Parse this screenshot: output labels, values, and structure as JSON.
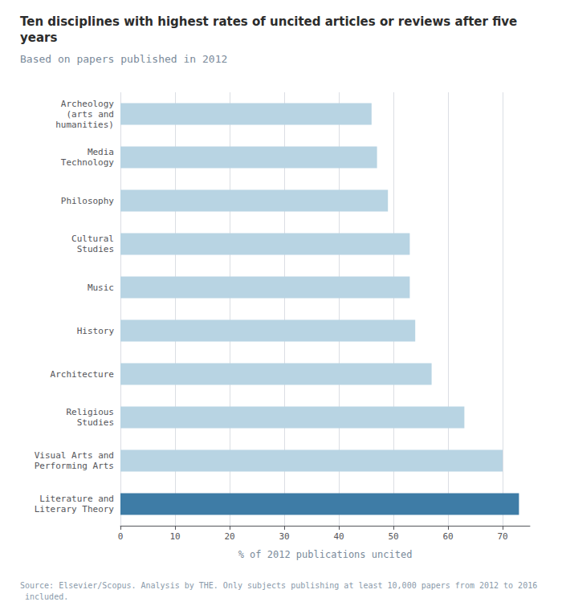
{
  "chart_data": {
    "type": "bar",
    "orientation": "horizontal",
    "title": "Ten disciplines with highest rates of uncited articles or reviews after five years",
    "subtitle": "Based on papers published in 2012",
    "footnote": "Source: Elsevier/Scopus. Analysis by THE. Only subjects publishing at least 10,000 papers from 2012 to 2016 included.",
    "categories": [
      "Archeology\n(arts and\nhumanities)",
      "Media\nTechnology",
      "Philosophy",
      "Cultural\nStudies",
      "Music",
      "History",
      "Architecture",
      "Religious\nStudies",
      "Visual Arts and\nPerforming Arts",
      "Literature and\nLiterary Theory"
    ],
    "values": [
      46,
      47,
      49,
      53,
      53,
      54,
      57,
      63,
      70,
      73
    ],
    "colors": [
      "#b8d4e3",
      "#b8d4e3",
      "#b8d4e3",
      "#b8d4e3",
      "#b8d4e3",
      "#b8d4e3",
      "#b8d4e3",
      "#b8d4e3",
      "#b8d4e3",
      "#3e7ca6"
    ],
    "xlabel": "% of 2012 publications uncited",
    "xlim": [
      0,
      75
    ],
    "xticks": [
      0,
      10,
      20,
      30,
      40,
      50,
      60,
      70
    ],
    "grid": true
  }
}
